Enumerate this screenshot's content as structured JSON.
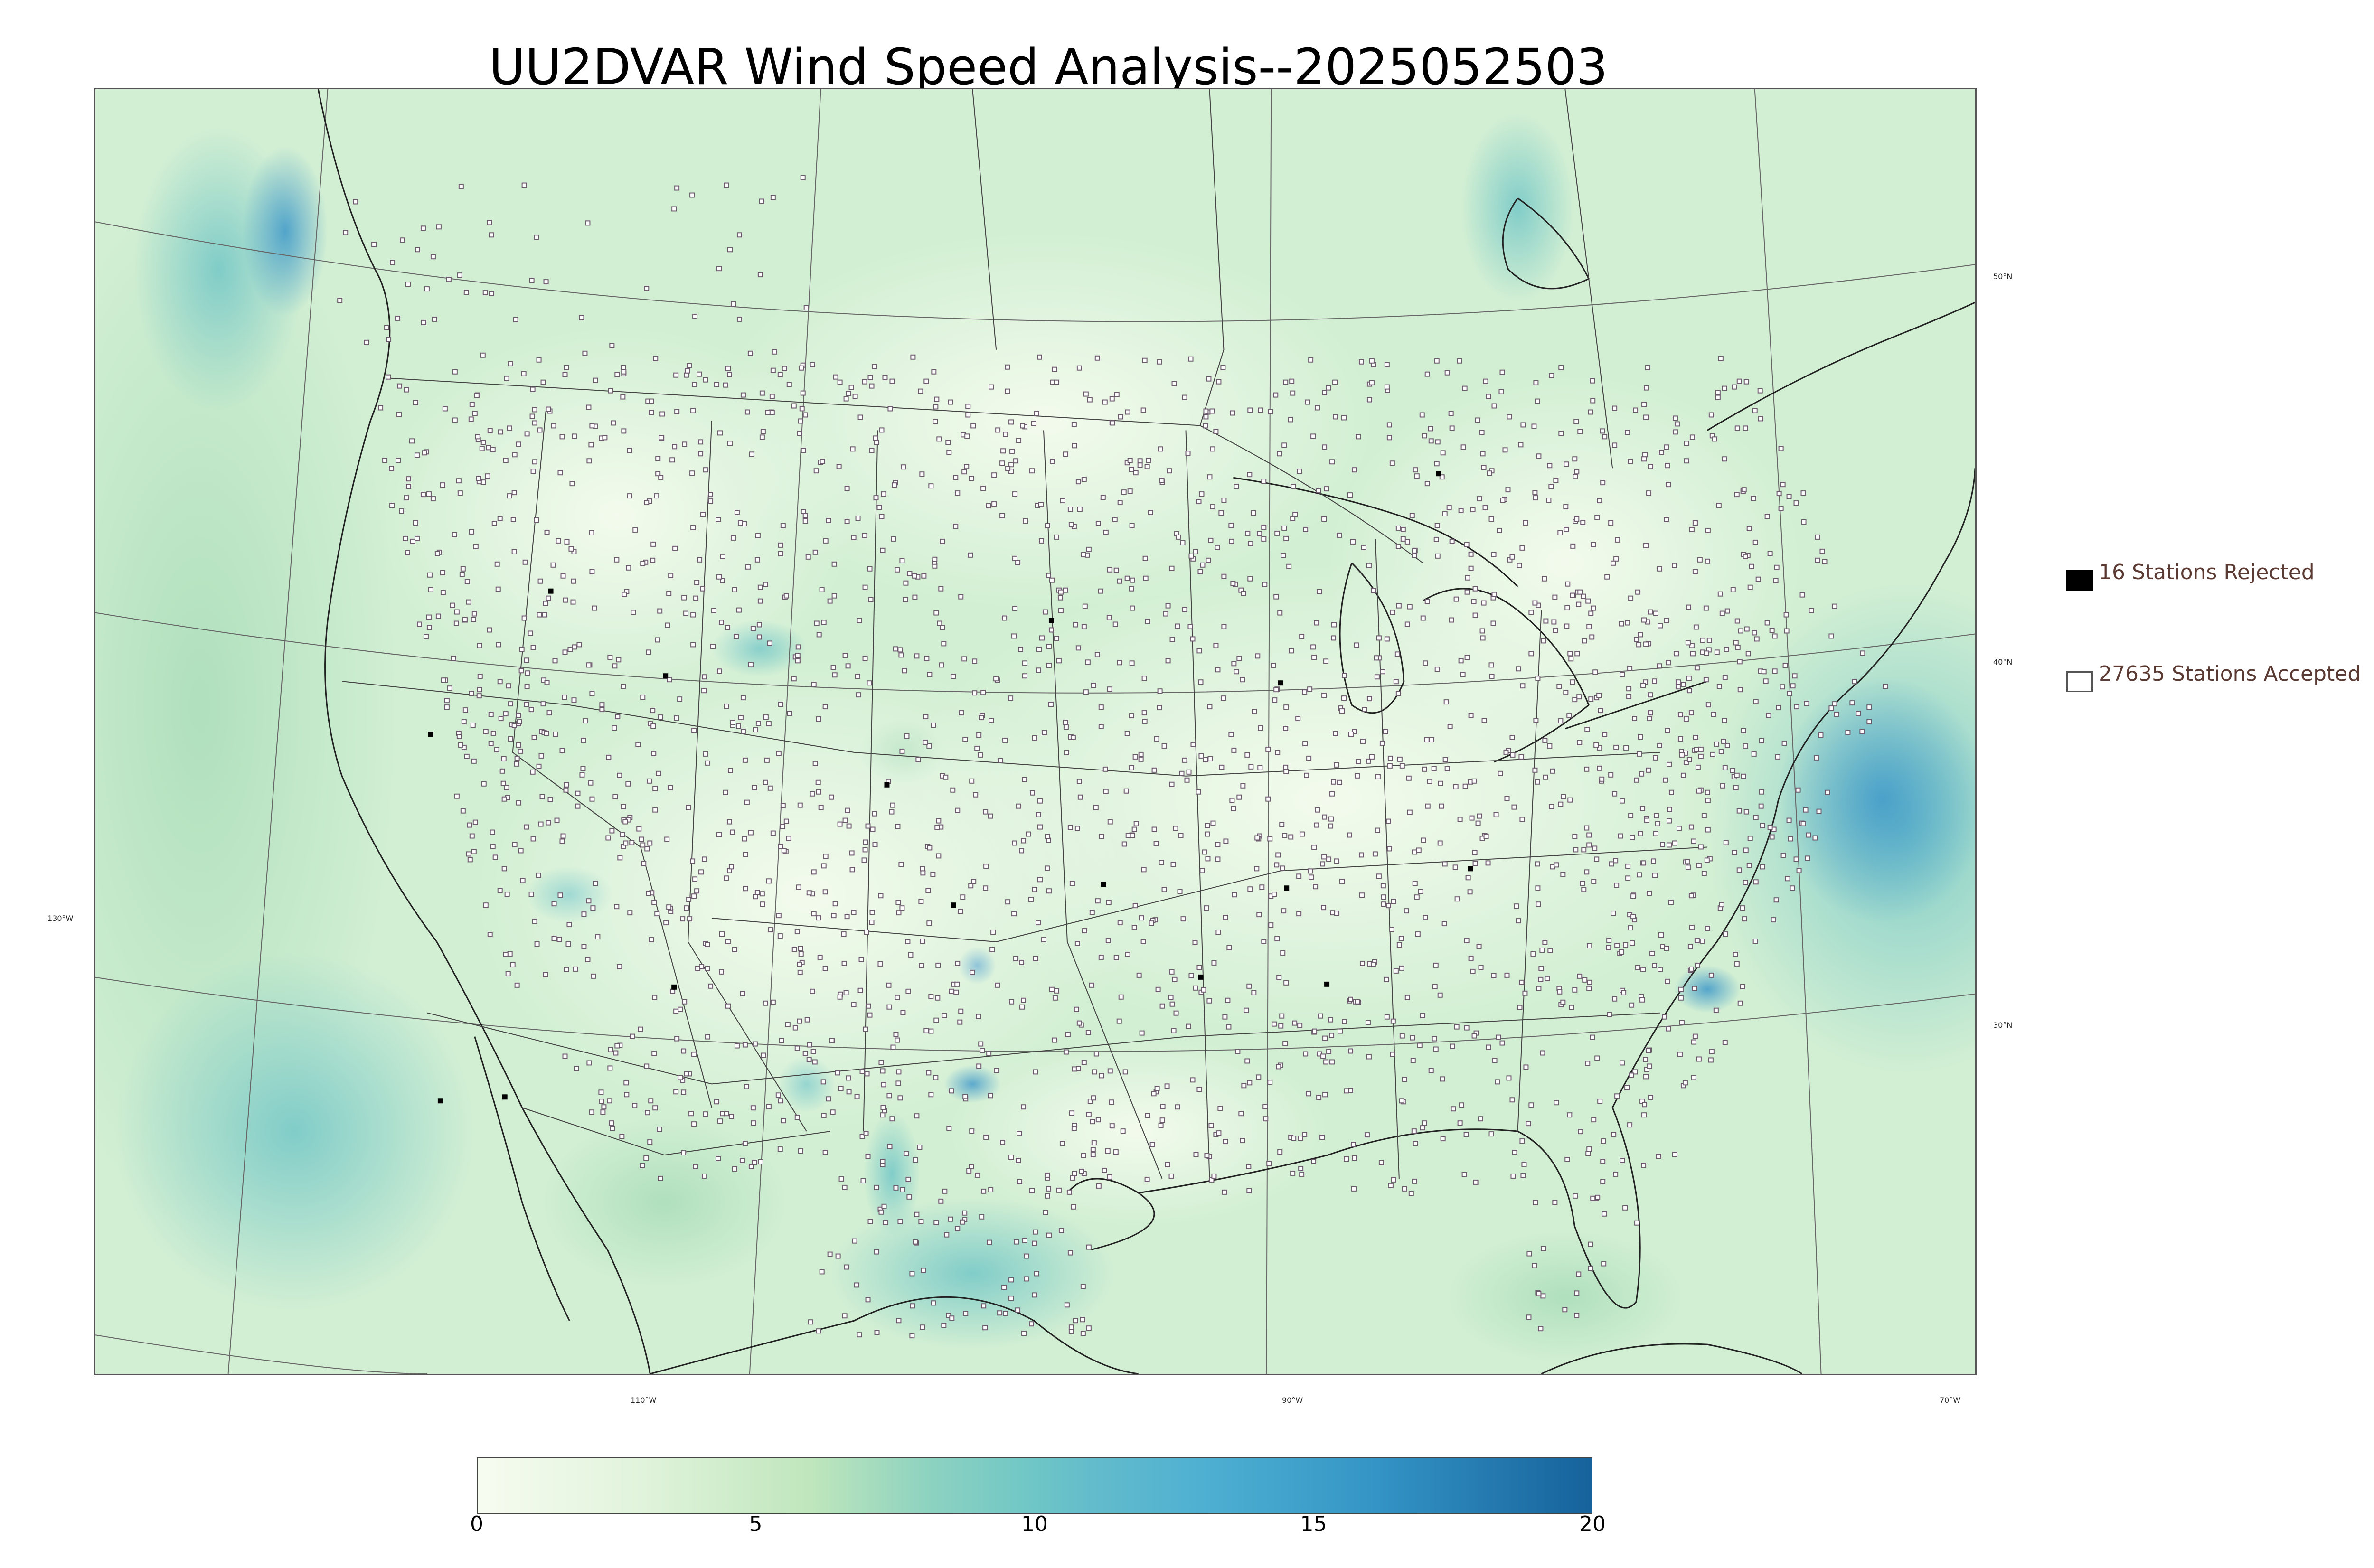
{
  "title": "UU2DVAR Wind Speed Analysis--2025052503",
  "legend": {
    "rejected_label": "16 Stations Rejected",
    "accepted_label": "27635 Stations Accepted"
  },
  "longitude_labels": [
    "130°W",
    "110°W",
    "90°W",
    "70°W"
  ],
  "latitude_labels": [
    "50°N",
    "40°N",
    "30°N"
  ],
  "colorbar": {
    "ticks": [
      "0",
      "5",
      "10",
      "15",
      "20"
    ],
    "min": 0,
    "max": 20,
    "stops": [
      {
        "value": 0,
        "color": "#f7fcf0"
      },
      {
        "value": 3,
        "color": "#e0f3db"
      },
      {
        "value": 6,
        "color": "#bfe6bc"
      },
      {
        "value": 8,
        "color": "#8fd3c0"
      },
      {
        "value": 10,
        "color": "#6ec6c6"
      },
      {
        "value": 11,
        "color": "#63bccb"
      },
      {
        "value": 13,
        "color": "#4fb0d2"
      },
      {
        "value": 16,
        "color": "#3596c6"
      },
      {
        "value": 20,
        "color": "#16629c"
      }
    ]
  },
  "colors": {
    "land_base": "#e7f5e3",
    "ocean_base": "#c8ebcf",
    "strong_wind": "#3a96c8",
    "station_marker": "#6b5a6b"
  }
}
